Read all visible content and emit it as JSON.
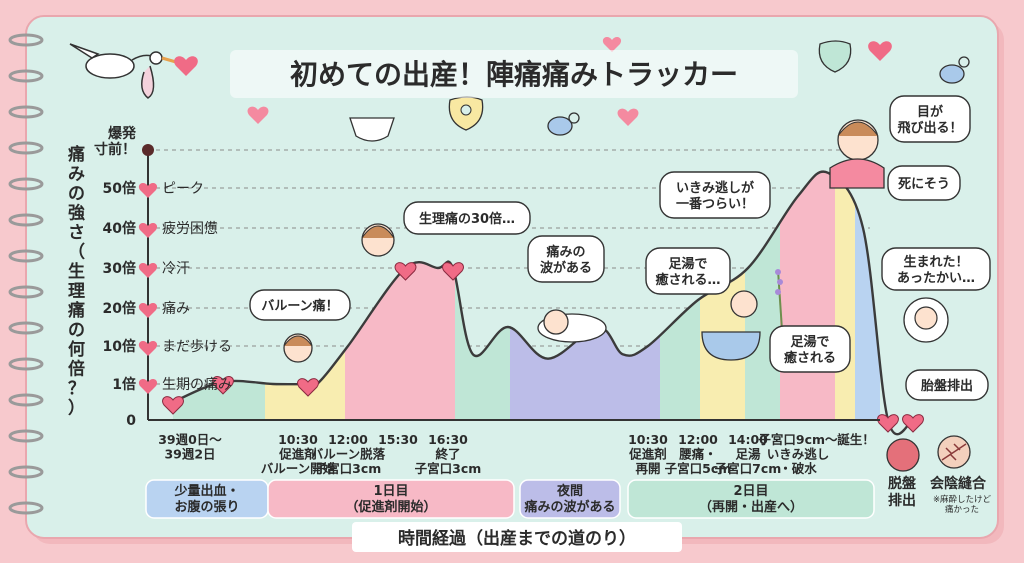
{
  "title": "初めての出産！陣痛痛みトラッカー",
  "y_axis_label": "痛みの強さ（生理痛の何倍？）",
  "x_axis_label": "時間経過（出産までの道のり）",
  "colors": {
    "page_bg": "#f7c9cd",
    "paper": "#d9f0ea",
    "curve": "#3b3b3b",
    "heart": "#f06b86",
    "pink_band": "#f7b9c6",
    "yellow_band": "#f8edb0",
    "blue_band": "#b9d3f1",
    "green_band": "#bfe6d6",
    "lavender_band": "#bcbde8",
    "phase_blue": "#b9d3f1",
    "phase_pink": "#f7b9c6",
    "phase_lavender": "#bcbde8",
    "phase_green": "#bfe6d6"
  },
  "y_ticks": [
    {
      "label": "0",
      "value": 0,
      "desc": ""
    },
    {
      "label": "1倍",
      "value": 1,
      "desc": "生期の痛み"
    },
    {
      "label": "10倍",
      "value": 10,
      "desc": "まだ歩ける"
    },
    {
      "label": "20倍",
      "value": 20,
      "desc": "痛み"
    },
    {
      "label": "30倍",
      "value": 30,
      "desc": "冷汗"
    },
    {
      "label": "40倍",
      "value": 40,
      "desc": "疲労困憊"
    },
    {
      "label": "50倍",
      "value": 50,
      "desc": "ピーク"
    },
    {
      "label": "爆発\n寸前！",
      "value": 60,
      "desc": ""
    }
  ],
  "x_labels": [
    {
      "text": "39週0日〜\n39週2日",
      "x": 0
    },
    {
      "text": "10:30\n促進剤\nバルーン開始",
      "x": 3
    },
    {
      "text": "12:00\nバルーン脱落\n子宮口3cm",
      "x": 4
    },
    {
      "text": "15:30",
      "x": 5
    },
    {
      "text": "16:30\n終了\n子宮口3cm",
      "x": 6
    },
    {
      "text": "10:30\n促進剤\n再開",
      "x": 10
    },
    {
      "text": "12:00\n腰痛・\n子宮口5cm",
      "x": 11
    },
    {
      "text": "14:00\n足湯\n子宮口7cm",
      "x": 12
    },
    {
      "text": "子宮口9cm〜\nいきみ逃し\n・破水",
      "x": 13
    },
    {
      "text": "誕生！",
      "x": 14
    }
  ],
  "phases": [
    {
      "label": "少量出血・\nお腹の張り"
    },
    {
      "label": "1日目\n（促進剤開始）"
    },
    {
      "label": "夜間\n痛みの波がある"
    },
    {
      "label": "2日目\n（再開・出産へ）"
    }
  ],
  "after_birth": [
    {
      "label": "脱盤\n排出",
      "note": ""
    },
    {
      "label": "会陰縫合",
      "note": "※麻酔したけど\n痛かった"
    }
  ],
  "bubbles": [
    {
      "id": "balloon",
      "text": "バルーン痛！"
    },
    {
      "id": "period30",
      "text": "生理痛の30倍…"
    },
    {
      "id": "wave",
      "text": "痛みの\n波がある"
    },
    {
      "id": "footbath1",
      "text": "足湯で\n癒される…"
    },
    {
      "id": "ikimi",
      "text": "いきみ逃しが\n一番つらい！"
    },
    {
      "id": "eyes",
      "text": "目が\n飛び出る！"
    },
    {
      "id": "die",
      "text": "死にそう"
    },
    {
      "id": "footbath2",
      "text": "足湯で\n癒される"
    },
    {
      "id": "born",
      "text": "生まれた！\nあったかい…"
    },
    {
      "id": "placenta",
      "text": "胎盤排出"
    }
  ],
  "chart_data": {
    "type": "area",
    "title": "初めての出産！陣痛痛みトラッカー",
    "xlabel": "時間経過（出産までの道のり）",
    "ylabel": "痛みの強さ（生理痛の何倍？）",
    "ylim": [
      0,
      60
    ],
    "yticks": [
      0,
      1,
      10,
      20,
      30,
      40,
      50
    ],
    "grid": true,
    "series": [
      {
        "values": [
          {
            "x": 0.5,
            "y": 0.5
          },
          {
            "x": 1.5,
            "y": 1.5
          },
          {
            "x": 2.5,
            "y": 1
          },
          {
            "x": 3.2,
            "y": 1
          },
          {
            "x": 3.4,
            "y": 1.2
          },
          {
            "x": 4,
            "y": 10
          },
          {
            "x": 5.15,
            "y": 30
          },
          {
            "x": 5.8,
            "y": 30
          },
          {
            "x": 6.1,
            "y": 30
          },
          {
            "x": 6.5,
            "y": 8
          },
          {
            "x": 7.2,
            "y": 15
          },
          {
            "x": 8,
            "y": 7
          },
          {
            "x": 9,
            "y": 15
          },
          {
            "x": 9.5,
            "y": 8
          },
          {
            "x": 10,
            "y": 10
          },
          {
            "x": 11,
            "y": 22
          },
          {
            "x": 12,
            "y": 30
          },
          {
            "x": 13,
            "y": 48
          },
          {
            "x": 13.6,
            "y": 54
          },
          {
            "x": 14.3,
            "y": 40
          },
          {
            "x": 14.8,
            "y": 0
          },
          {
            "x": 15.3,
            "y": 0
          }
        ],
        "markers": [
          {
            "x": 0.5,
            "y": 0.5
          },
          {
            "x": 1.5,
            "y": 1.5
          },
          {
            "x": 3.2,
            "y": 1
          },
          {
            "x": 5.15,
            "y": 30
          },
          {
            "x": 6.1,
            "y": 30
          },
          {
            "x": 14.8,
            "y": 0
          },
          {
            "x": 15.3,
            "y": 0
          }
        ]
      }
    ]
  }
}
